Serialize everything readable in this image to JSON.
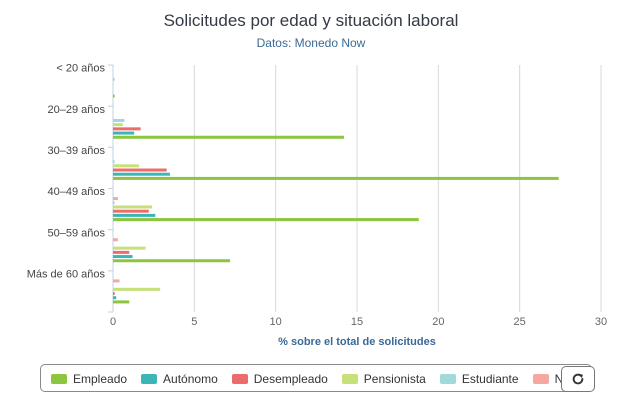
{
  "chart_data": {
    "type": "bar",
    "orientation": "horizontal",
    "title": "Solicitudes por edad y situación laboral",
    "subtitle": "Datos: Monedo Now",
    "xlabel": "% sobre el total de solicitudes",
    "ylabel": "",
    "xlim": [
      0,
      30
    ],
    "x_ticks": [
      "0",
      "5",
      "10",
      "15",
      "20",
      "25",
      "30"
    ],
    "grid": "vertical",
    "legend_position": "bottom",
    "categories": [
      "< 20 años",
      "20–29 años",
      "30–39 años",
      "40–49 años",
      "50–59 años",
      "Más de 60 años"
    ],
    "series": [
      {
        "name": "Empleado",
        "color": "#8cc63f",
        "values": [
          0.1,
          14.2,
          27.4,
          18.8,
          7.2,
          1.0
        ]
      },
      {
        "name": "Autónomo",
        "color": "#3cb5b5",
        "values": [
          0.0,
          1.3,
          3.5,
          2.6,
          1.2,
          0.2
        ]
      },
      {
        "name": "Desempleado",
        "color": "#ee6b6b",
        "values": [
          0.0,
          1.7,
          3.3,
          2.2,
          1.0,
          0.1
        ]
      },
      {
        "name": "Pensionista",
        "color": "#c7e07a",
        "values": [
          0.0,
          0.6,
          1.6,
          2.4,
          2.0,
          2.9
        ]
      },
      {
        "name": "Estudiante",
        "color": "#9fd9d9",
        "values": [
          0.1,
          0.7,
          0.1,
          0.1,
          0.0,
          0.0
        ]
      },
      {
        "name": "NS/NC",
        "color": "#f4a89f",
        "values": [
          0.0,
          0.0,
          0.0,
          0.3,
          0.3,
          0.4
        ]
      }
    ]
  },
  "legend": {
    "items": [
      "Empleado",
      "Autónomo",
      "Desempleado",
      "Pensionista",
      "Estudiante",
      "NS/"
    ]
  },
  "controls": {
    "reset_icon": "refresh-icon"
  }
}
